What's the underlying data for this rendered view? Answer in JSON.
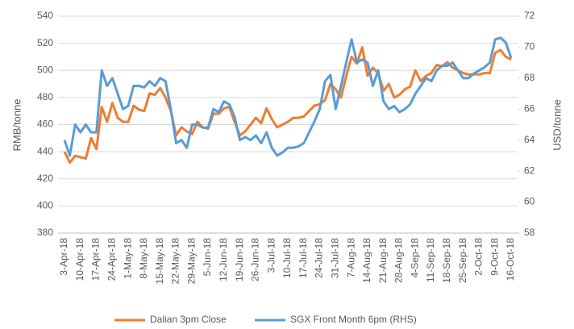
{
  "chart_data": {
    "type": "line",
    "categories": [
      "3-Apr-18",
      null,
      null,
      "10-Apr-18",
      null,
      null,
      "17-Apr-18",
      null,
      null,
      "24-Apr-18",
      null,
      null,
      "1-May-18",
      null,
      null,
      "8-May-18",
      null,
      null,
      "15-May-18",
      null,
      null,
      "22-May-18",
      null,
      null,
      "29-May-18",
      null,
      null,
      "5-Jun-18",
      null,
      null,
      "12-Jun-18",
      null,
      null,
      "19-Jun-18",
      null,
      null,
      "26-Jun-18",
      null,
      null,
      "3-Jul-18",
      null,
      null,
      "10-Jul-18",
      null,
      null,
      "17-Jul-18",
      null,
      null,
      "24-Jul-18",
      null,
      null,
      "31-Jul-18",
      null,
      null,
      "7-Aug-18",
      null,
      null,
      "14-Aug-18",
      null,
      null,
      "21-Aug-18",
      null,
      null,
      "28-Aug-18",
      null,
      null,
      "4-Sep-18",
      null,
      null,
      "11-Sep-18",
      null,
      null,
      "18-Sep-18",
      null,
      null,
      "25-Sep-18",
      null,
      null,
      "2-Oct-18",
      null,
      null,
      "9-Oct-18",
      null,
      null,
      "16-Oct-18"
    ],
    "series": [
      {
        "name": "Dalian 3pm Close",
        "color": "#ed7d31",
        "values": [
          440,
          432,
          437,
          436,
          435,
          450,
          442,
          473,
          462,
          476,
          465,
          462,
          462,
          474,
          471,
          470,
          483,
          482,
          487,
          480,
          470,
          452,
          458,
          455,
          453,
          462,
          458,
          457,
          468,
          468,
          472,
          473,
          462,
          452,
          455,
          460,
          465,
          461,
          472,
          464,
          458,
          460,
          462,
          465,
          465,
          466,
          470,
          474,
          475,
          478,
          490,
          486,
          480,
          496,
          510,
          505,
          517,
          496,
          502,
          498,
          485,
          490,
          480,
          482,
          486,
          488,
          500,
          492,
          496,
          498,
          504,
          503,
          506,
          502,
          500,
          498,
          497,
          497,
          497,
          498,
          498,
          513,
          515,
          510,
          508
        ]
      },
      {
        "name": "SGX Front Month 6pm (RHS)",
        "color": "#5b9bd5",
        "axis": "y2",
        "values": [
          64.0,
          63.0,
          65.0,
          64.5,
          65.0,
          64.5,
          64.5,
          68.5,
          67.5,
          68.0,
          67.0,
          66.0,
          66.2,
          67.5,
          67.5,
          67.4,
          67.8,
          67.5,
          68.0,
          67.8,
          66.0,
          63.8,
          64.0,
          63.5,
          65.0,
          65.0,
          64.8,
          64.8,
          66.0,
          65.8,
          66.5,
          66.3,
          65.5,
          64.0,
          64.2,
          64.0,
          64.3,
          63.8,
          64.5,
          63.5,
          63.0,
          63.2,
          63.5,
          63.5,
          63.6,
          63.8,
          64.5,
          65.2,
          66.0,
          67.8,
          68.2,
          66.0,
          67.5,
          69.0,
          70.5,
          69.0,
          69.2,
          69.0,
          67.5,
          68.5,
          66.5,
          66.0,
          66.2,
          65.8,
          66.0,
          66.3,
          67.0,
          67.5,
          68.0,
          67.8,
          68.5,
          68.8,
          68.8,
          69.0,
          68.5,
          68.0,
          68.0,
          68.3,
          68.5,
          68.7,
          69.0,
          70.5,
          70.6,
          70.3,
          69.3
        ]
      }
    ],
    "ylabel": "RMB/tonne",
    "y2label": "USD/tonne",
    "ylim": [
      380,
      540
    ],
    "yticks": [
      380,
      400,
      420,
      440,
      460,
      480,
      500,
      520,
      540
    ],
    "y2lim": [
      58,
      72
    ],
    "y2ticks": [
      58,
      60,
      62,
      64,
      66,
      68,
      70,
      72
    ],
    "grid": true,
    "legend": "bottom"
  }
}
